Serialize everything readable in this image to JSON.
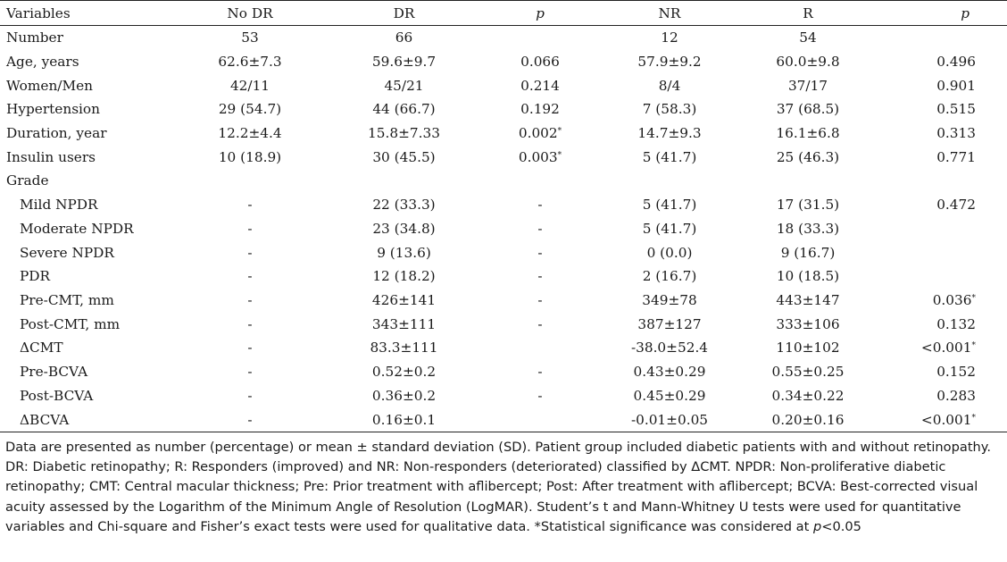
{
  "table": {
    "headers": [
      "Variables",
      "No DR",
      "DR",
      "p",
      "NR",
      "R",
      "p"
    ],
    "rows": [
      {
        "label": "Number",
        "nodr": "53",
        "dr": "66",
        "p1": "",
        "p1_sig": "",
        "nr": "12",
        "r": "54",
        "p2": "",
        "p2_sig": ""
      },
      {
        "label": "Age, years",
        "nodr": "62.6±7.3",
        "dr": "59.6±9.7",
        "p1": "0.066",
        "p1_sig": "",
        "nr": "57.9±9.2",
        "r": "60.0±9.8",
        "p2": "0.496",
        "p2_sig": ""
      },
      {
        "label": "Women/Men",
        "nodr": "42/11",
        "dr": "45/21",
        "p1": "0.214",
        "p1_sig": "",
        "nr": "8/4",
        "r": "37/17",
        "p2": "0.901",
        "p2_sig": ""
      },
      {
        "label": "Hypertension",
        "nodr": "29 (54.7)",
        "dr": "44 (66.7)",
        "p1": "0.192",
        "p1_sig": "",
        "nr": "7 (58.3)",
        "r": "37 (68.5)",
        "p2": "0.515",
        "p2_sig": ""
      },
      {
        "label": "Duration, year",
        "nodr": "12.2±4.4",
        "dr": "15.8±7.33",
        "p1": "0.002",
        "p1_sig": "*",
        "nr": "14.7±9.3",
        "r": "16.1±6.8",
        "p2": "0.313",
        "p2_sig": ""
      },
      {
        "label": "Insulin users",
        "nodr": "10 (18.9)",
        "dr": "30 (45.5)",
        "p1": "0.003",
        "p1_sig": "*",
        "nr": "5 (41.7)",
        "r": "25 (46.3)",
        "p2": "0.771",
        "p2_sig": ""
      },
      {
        "label": "Grade",
        "nodr": "",
        "dr": "",
        "p1": "",
        "p1_sig": "",
        "nr": "",
        "r": "",
        "p2": "",
        "p2_sig": ""
      },
      {
        "label": "Mild NPDR",
        "nodr": "-",
        "dr": "22 (33.3)",
        "p1": "-",
        "p1_sig": "",
        "nr": "5 (41.7)",
        "r": "17 (31.5)",
        "p2": "0.472",
        "p2_sig": ""
      },
      {
        "label": "Moderate NPDR",
        "nodr": "-",
        "dr": "23 (34.8)",
        "p1": "-",
        "p1_sig": "",
        "nr": "5 (41.7)",
        "r": "18 (33.3)",
        "p2": "",
        "p2_sig": ""
      },
      {
        "label": "Severe NPDR",
        "nodr": "-",
        "dr": "9 (13.6)",
        "p1": "-",
        "p1_sig": "",
        "nr": "0 (0.0)",
        "r": "9 (16.7)",
        "p2": "",
        "p2_sig": ""
      },
      {
        "label": "PDR",
        "nodr": "-",
        "dr": "12 (18.2)",
        "p1": "-",
        "p1_sig": "",
        "nr": "2 (16.7)",
        "r": "10 (18.5)",
        "p2": "",
        "p2_sig": ""
      },
      {
        "label": "Pre-CMT, mm",
        "nodr": "-",
        "dr": "426±141",
        "p1": "-",
        "p1_sig": "",
        "nr": "349±78",
        "r": "443±147",
        "p2": "0.036",
        "p2_sig": "*"
      },
      {
        "label": "Post-CMT, mm",
        "nodr": "-",
        "dr": "343±111",
        "p1": "-",
        "p1_sig": "",
        "nr": "387±127",
        "r": "333±106",
        "p2": "0.132",
        "p2_sig": ""
      },
      {
        "label": "ΔCMT",
        "nodr": "-",
        "dr": "83.3±111",
        "p1": "",
        "p1_sig": "",
        "nr": "-38.0±52.4",
        "r": "110±102",
        "p2": "<0.001",
        "p2_sig": "*"
      },
      {
        "label": "Pre-BCVA",
        "nodr": "-",
        "dr": "0.52±0.2",
        "p1": "-",
        "p1_sig": "",
        "nr": "0.43±0.29",
        "r": "0.55±0.25",
        "p2": "0.152",
        "p2_sig": ""
      },
      {
        "label": "Post-BCVA",
        "nodr": "-",
        "dr": "0.36±0.2",
        "p1": "-",
        "p1_sig": "",
        "nr": "0.45±0.29",
        "r": "0.34±0.22",
        "p2": "0.283",
        "p2_sig": ""
      },
      {
        "label": "ΔBCVA",
        "nodr": "-",
        "dr": "0.16±0.1",
        "p1": "",
        "p1_sig": "",
        "nr": "-0.01±0.05",
        "r": "0.20±0.16",
        "p2": "<0.001",
        "p2_sig": "*"
      }
    ]
  },
  "footnote": {
    "main": "Data are presented as number (percentage) or mean ± standard deviation (SD). Patient group included diabetic patients with and without retinopathy. DR: Diabetic retinopathy; R: Responders (improved) and NR: Non-responders (deteriorated) classified by ΔCMT. NPDR: Non-proliferative diabetic retinopathy; CMT: Central macular thickness; Pre: Prior treatment with aflibercept; Post: After treatment with aflibercept; BCVA: Best-corrected visual acuity assessed by the Logarithm of the Minimum Angle of Resolution (LogMAR). Student’s t and Mann-Whitney U tests were used for quantitative variables and Chi-square and Fisher’s exact tests were used for qualitative data. *Statistical significance was considered at ",
    "p_symbol": "p",
    "threshold": "<0.05"
  }
}
